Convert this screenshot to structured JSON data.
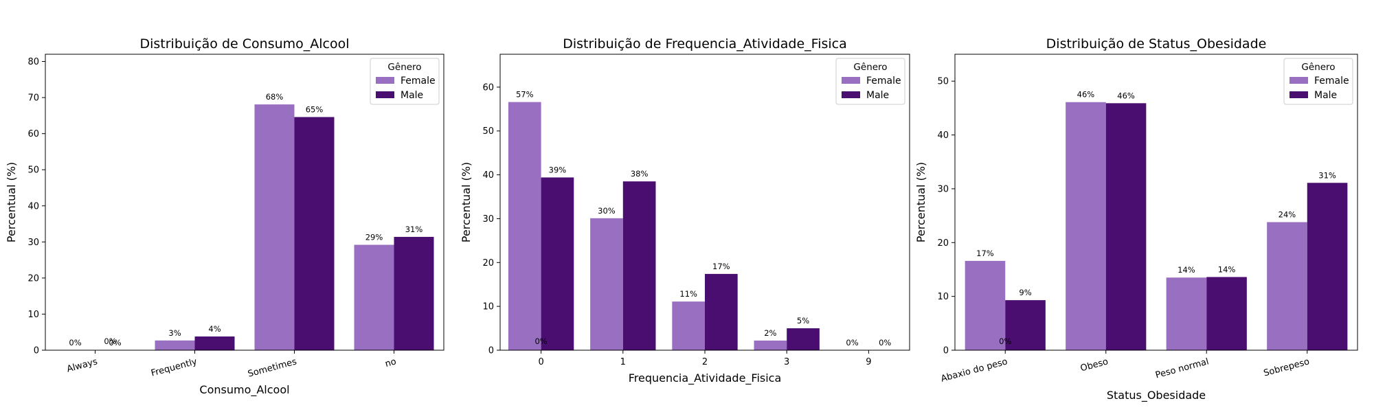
{
  "colors": {
    "female": "#9970c1",
    "male": "#4a0e70",
    "axis": "#000000"
  },
  "legend": {
    "title": "Gênero",
    "entries": [
      "Female",
      "Male"
    ],
    "placement": "top-right"
  },
  "chart_data": [
    {
      "type": "bar",
      "title": "Distribuição de Consumo_Alcool",
      "xlabel": "Consumo_Alcool",
      "ylabel": "Percentual (%)",
      "ylim": [
        0,
        82
      ],
      "yticks": [
        0,
        10,
        20,
        30,
        40,
        50,
        60,
        70,
        80
      ],
      "categories": [
        "Always",
        "Frequently",
        "Sometimes",
        "no"
      ],
      "rotate_ticks": true,
      "series": [
        {
          "name": "Female",
          "values": [
            0,
            2.7,
            68.1,
            29.2
          ],
          "labels": [
            "0%",
            "3%",
            "68%",
            "29%"
          ]
        },
        {
          "name": "Male",
          "values": [
            0,
            3.8,
            64.6,
            31.4
          ],
          "labels": [
            "0%",
            "4%",
            "65%",
            "31%"
          ]
        }
      ],
      "extra_labels": [
        "0%"
      ]
    },
    {
      "type": "bar",
      "title": "Distribuição de Frequencia_Atividade_Fisica",
      "xlabel": "Frequencia_Atividade_Fisica",
      "ylabel": "Percentual (%)",
      "ylim": [
        0,
        67.5
      ],
      "yticks": [
        0,
        10,
        20,
        30,
        40,
        50,
        60
      ],
      "categories": [
        "0",
        "1",
        "2",
        "3",
        "9"
      ],
      "rotate_ticks": false,
      "series": [
        {
          "name": "Female",
          "values": [
            56.6,
            30.1,
            11.1,
            2.2,
            0
          ],
          "labels": [
            "57%",
            "30%",
            "11%",
            "2%",
            "0%"
          ]
        },
        {
          "name": "Male",
          "values": [
            39.4,
            38.5,
            17.4,
            5.0,
            0
          ],
          "labels": [
            "39%",
            "38%",
            "17%",
            "5%",
            "0%"
          ]
        }
      ],
      "extra_labels": [
        "0%"
      ]
    },
    {
      "type": "bar",
      "title": "Distribuição de Status_Obesidade",
      "xlabel": "Status_Obesidade",
      "ylabel": "Percentual (%)",
      "ylim": [
        0,
        55
      ],
      "yticks": [
        0,
        10,
        20,
        30,
        40,
        50
      ],
      "categories": [
        "Abaxio do peso",
        "Obeso",
        "Peso normal",
        "Sobrepeso"
      ],
      "rotate_ticks": true,
      "series": [
        {
          "name": "Female",
          "values": [
            16.6,
            46.1,
            13.5,
            23.8
          ],
          "labels": [
            "17%",
            "46%",
            "14%",
            "24%"
          ]
        },
        {
          "name": "Male",
          "values": [
            9.3,
            45.9,
            13.6,
            31.1
          ],
          "labels": [
            "9%",
            "46%",
            "14%",
            "31%"
          ]
        }
      ],
      "extra_labels": [
        "0%"
      ]
    }
  ]
}
